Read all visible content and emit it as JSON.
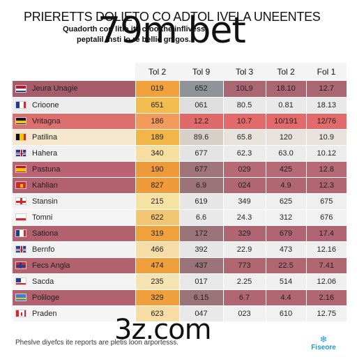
{
  "header": {
    "title": "PRIERETTS DOLIETO CO ADTOL IVELA UNEENTES",
    "subtitle_line1": "Quadorth con litio ite croo the inflivess,",
    "subtitle_line2": "peptalil insti lo re bellie gnigos."
  },
  "watermarks": {
    "top": "79m bet",
    "bottom": "3z.com"
  },
  "table": {
    "columns": [
      "Tol 2",
      "Tol 9",
      "Tol 3",
      "Tol 2",
      "Fol 1"
    ],
    "rows": [
      {
        "name": "Jeura Unagie",
        "flag": "flag-red-white-blue-icon",
        "values": [
          "019",
          "652",
          "10L9",
          "18.10",
          "12.7"
        ],
        "colors": [
          "#a65c6a",
          "#f0a13c",
          "#8f9499",
          "#aa6672",
          "#aa6672",
          "#aa6672"
        ]
      },
      {
        "name": "Crioone",
        "flag": "flag-blue-white-red-icon",
        "values": [
          "651",
          "061",
          "80.5",
          "0.81",
          "18.13"
        ],
        "colors": [
          "#ececec",
          "#f2bc4e",
          "#dedede",
          "#e9e9e9",
          "#e9e9e9",
          "#e9e9e9"
        ]
      },
      {
        "name": "Vritagna",
        "flag": "flag-black-yellow-icon",
        "values": [
          "186",
          "12.2",
          "10.7",
          "10/191",
          "12/76"
        ],
        "colors": [
          "#de6f6f",
          "#f29b5a",
          "#e06a6a",
          "#e36a6a",
          "#e36a6a",
          "#e36a6a"
        ]
      },
      {
        "name": "Patilina",
        "flag": "flag-black-yellow-red-icon",
        "values": [
          "189",
          "89.6",
          "65.8",
          "120",
          "10.9"
        ],
        "colors": [
          "#f5e7cd",
          "#f2b547",
          "#d6d0c8",
          "#e7e3dc",
          "#e7e3dc",
          "#e7e3dc"
        ]
      },
      {
        "name": "Hahera",
        "flag": "flag-union-jack-icon",
        "values": [
          "340",
          "677",
          "62.3",
          "63.0",
          "10.12"
        ],
        "colors": [
          "#f0f0f0",
          "#f6dda0",
          "#e4e4e4",
          "#ececec",
          "#ececec",
          "#ececec"
        ]
      },
      {
        "name": "Pastuna",
        "flag": "flag-red-yellow-icon",
        "values": [
          "190",
          "677",
          "029",
          "425",
          "12.8"
        ],
        "colors": [
          "#ba6473",
          "#ef9a3a",
          "#a07579",
          "#b56a76",
          "#b56a76",
          "#b56a76"
        ]
      },
      {
        "name": "Kahlian",
        "flag": "flag-red-yellow-emblem-icon",
        "values": [
          "827",
          "6.9",
          "024",
          "4.9",
          "12.3"
        ],
        "colors": [
          "#b3616f",
          "#f09b3a",
          "#9a7478",
          "#b06772",
          "#b06772",
          "#b06772"
        ]
      },
      {
        "name": "Stansin",
        "flag": "flag-white-red-cross-icon",
        "values": [
          "215",
          "619",
          "349",
          "625",
          "675"
        ],
        "colors": [
          "#f1f1f1",
          "#f6e2a3",
          "#e6e6e6",
          "#efefef",
          "#efefef",
          "#efefef"
        ]
      },
      {
        "name": "Tomni",
        "flag": "flag-white-red-icon",
        "values": [
          "622",
          "6.6",
          "24.3",
          "312",
          "676"
        ],
        "colors": [
          "#f5f5f5",
          "#f3c673",
          "#e9e9e9",
          "#f1f1f1",
          "#f1f1f1",
          "#f1f1f1"
        ]
      },
      {
        "name": "Sationa",
        "flag": "flag-blue-white-red-icon",
        "values": [
          "319",
          "172",
          "329",
          "679",
          "17.4"
        ],
        "colors": [
          "#b2616f",
          "#efa23c",
          "#9a7478",
          "#af6672",
          "#af6672",
          "#af6672"
        ]
      },
      {
        "name": "Bernfo",
        "flag": "flag-union-jack-icon",
        "values": [
          "466",
          "392",
          "22.9",
          "473",
          "12.16"
        ],
        "colors": [
          "#f1f1f1",
          "#f6dda8",
          "#e6e6e6",
          "#eeeeee",
          "#eeeeee",
          "#eeeeee"
        ]
      },
      {
        "name": "Fecs Angla",
        "flag": "flag-red-blue-cross-icon",
        "values": [
          "474",
          "437",
          "773",
          "22.5",
          "7.41"
        ],
        "colors": [
          "#b2616f",
          "#ef9f3c",
          "#9a7478",
          "#b06772",
          "#b06772",
          "#b06772"
        ]
      },
      {
        "name": "Sacda",
        "flag": "flag-blue-red-white-icon",
        "values": [
          "235",
          "017",
          "2.25",
          "514",
          "12.06"
        ],
        "colors": [
          "#f3f3f3",
          "#f6e3b2",
          "#e8e8e8",
          "#efefef",
          "#efefef",
          "#efefef"
        ]
      },
      {
        "name": "Poliloge",
        "flag": "flag-blue-yellow-icon",
        "values": [
          "329",
          "6.15",
          "6.7",
          "4.4",
          "2.16"
        ],
        "colors": [
          "#b2616f",
          "#ef9f3c",
          "#9a7478",
          "#b06772",
          "#b06772",
          "#b06772"
        ]
      },
      {
        "name": "Praden",
        "flag": "flag-white-red-leaf-icon",
        "values": [
          "623",
          "047",
          "023",
          "610",
          "12.75"
        ],
        "colors": [
          "#f5f5f5",
          "#f7dca5",
          "#e9e9e9",
          "#f1f1f1",
          "#f1f1f1",
          "#f1f1f1"
        ]
      }
    ]
  },
  "footer": {
    "note": "Pheslve diyefcs ite reports are pletis loon arportesss.",
    "logo_text": "Fiseore"
  },
  "colors": {
    "title": "#111111",
    "logo": "#1a9ad6",
    "header_bg": "#f4f4f4"
  }
}
